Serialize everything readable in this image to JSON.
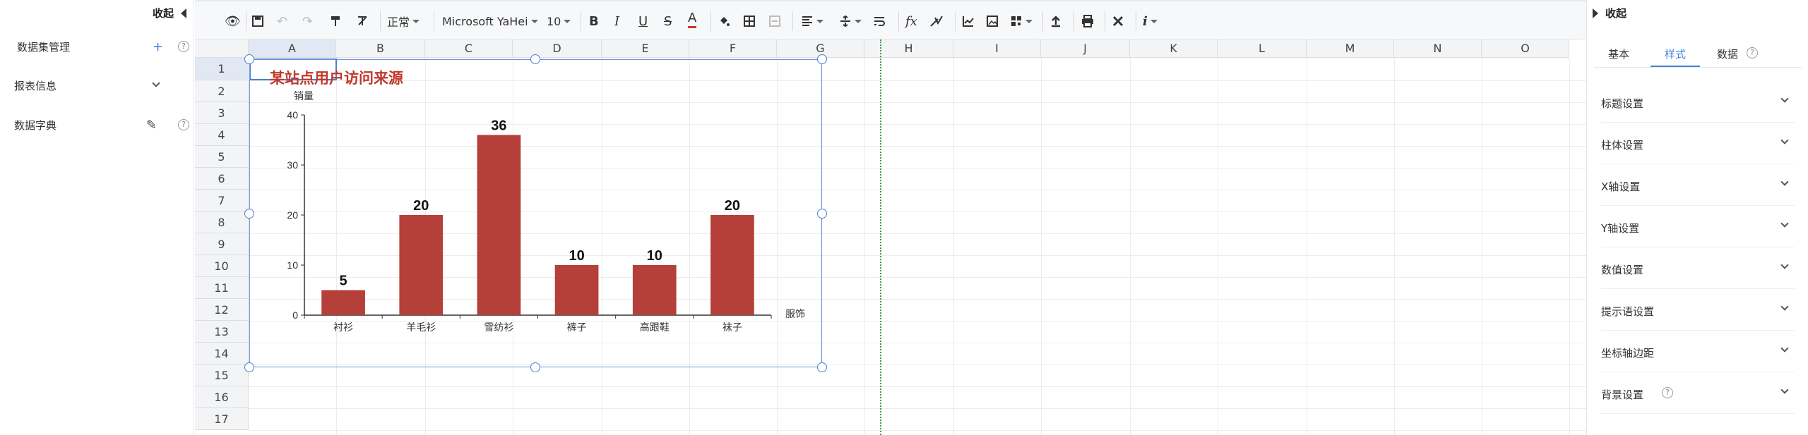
{
  "left_panel": {
    "collapse_label": "收起",
    "items": [
      {
        "label": "数据集管理",
        "action": "+",
        "help": "?"
      },
      {
        "label": "报表信息"
      },
      {
        "label": "数据字典",
        "action": "✎",
        "help": "?"
      }
    ]
  },
  "toolbar": {
    "font_style": "正常",
    "font_family": "Microsoft YaHei",
    "font_size": "10",
    "buttons": [
      "preview-icon",
      "save-icon",
      "undo-icon",
      "redo-icon",
      "format-painter-icon",
      "clear-format-icon",
      "bold-icon",
      "italic-icon",
      "underline-icon",
      "strikethrough-icon",
      "font-color-icon",
      "fill-color-icon",
      "border-icon",
      "merge-icon",
      "align-horizontal-icon",
      "align-vertical-icon",
      "wrap-icon",
      "function-icon",
      "formula-icon",
      "chart-icon",
      "image-icon",
      "qrcode-icon",
      "upload-icon",
      "print-icon",
      "tools-icon",
      "info-icon"
    ]
  },
  "sheet": {
    "columns": [
      "A",
      "B",
      "C",
      "D",
      "E",
      "F",
      "G",
      "H",
      "I",
      "J",
      "K",
      "L",
      "M",
      "N",
      "O"
    ],
    "rows": [
      "1",
      "2",
      "3",
      "4",
      "5",
      "6",
      "7",
      "8",
      "9",
      "10",
      "11",
      "12",
      "13",
      "14",
      "15",
      "16",
      "17"
    ]
  },
  "chart_data": {
    "type": "bar",
    "title": "某站点用户访问来源",
    "ylabel": "销量",
    "xlabel": "服饰",
    "categories": [
      "衬衫",
      "羊毛衫",
      "雪纺衫",
      "裤子",
      "高跟鞋",
      "袜子"
    ],
    "values": [
      5,
      20,
      36,
      10,
      10,
      20
    ],
    "ylim": [
      0,
      40
    ],
    "yticks": [
      0,
      10,
      20,
      30,
      40
    ],
    "bar_color": "#b5403a",
    "title_color": "#c0392b",
    "legend": "none",
    "grid": false
  },
  "right_panel": {
    "collapse_label": "收起",
    "tabs": [
      "基本",
      "样式",
      "数据"
    ],
    "active_tab": "样式",
    "sections": [
      "标题设置",
      "柱体设置",
      "X轴设置",
      "Y轴设置",
      "数值设置",
      "提示语设置",
      "坐标轴边距",
      "背景设置"
    ]
  }
}
